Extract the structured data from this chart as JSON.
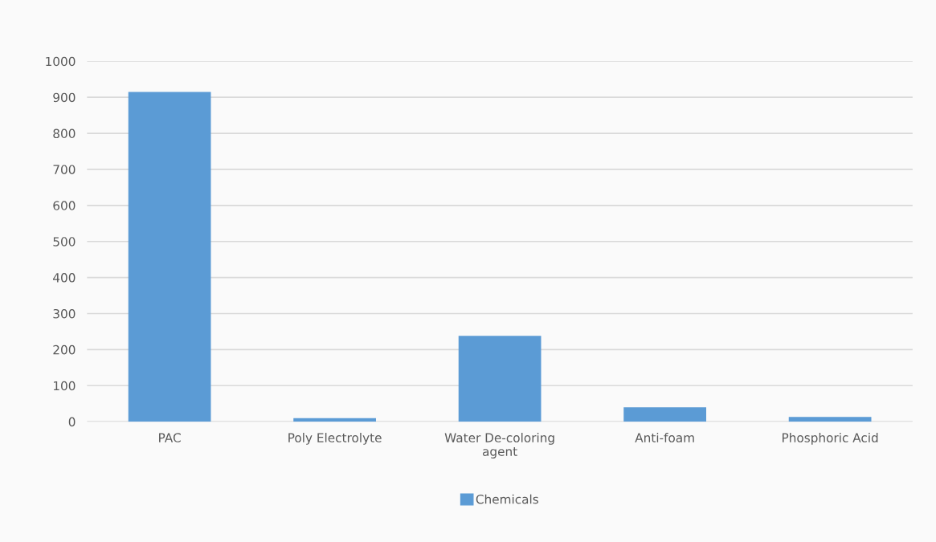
{
  "chart_data": {
    "type": "bar",
    "categories": [
      "PAC",
      "Poly Electrolyte",
      "Water De-coloring\nagent",
      "Anti-foam",
      "Phosphoric Acid"
    ],
    "series": [
      {
        "name": "Chemicals",
        "color": "#5b9bd5",
        "values": [
          915,
          10,
          238,
          40,
          13
        ]
      }
    ],
    "ylim": [
      0,
      1000
    ],
    "yticks": [
      0,
      100,
      200,
      300,
      400,
      500,
      600,
      700,
      800,
      900,
      1000
    ],
    "grid": "y",
    "legend": "bottom"
  }
}
